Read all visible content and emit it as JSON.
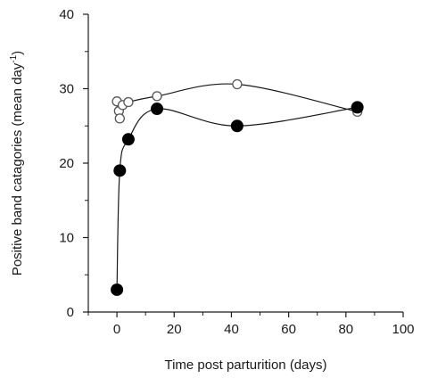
{
  "chart_data": {
    "type": "scatter",
    "xlabel": "Time post parturition (days)",
    "ylabel": "Positive band catagories (mean day",
    "ylabel_superscript": "-1",
    "ylabel_suffix": ")",
    "xlim": [
      -10,
      100
    ],
    "ylim": [
      0,
      40
    ],
    "xticks": [
      0,
      20,
      40,
      60,
      80,
      100
    ],
    "yticks": [
      0,
      10,
      20,
      30,
      40
    ],
    "grid": false,
    "series": [
      {
        "marker": "open-circle",
        "points": [
          {
            "x": 0,
            "y": 28.3
          },
          {
            "x": 0.7,
            "y": 27.0
          },
          {
            "x": 1.0,
            "y": 26.0
          },
          {
            "x": 2,
            "y": 27.8
          },
          {
            "x": 4,
            "y": 28.2
          },
          {
            "x": 14,
            "y": 29.0
          },
          {
            "x": 42,
            "y": 30.6
          },
          {
            "x": 84,
            "y": 26.9
          }
        ]
      },
      {
        "marker": "filled-circle",
        "points": [
          {
            "x": 0,
            "y": 3.0
          },
          {
            "x": 1,
            "y": 19.0
          },
          {
            "x": 4,
            "y": 23.2
          },
          {
            "x": 14,
            "y": 27.3
          },
          {
            "x": 42,
            "y": 25.0
          },
          {
            "x": 84,
            "y": 27.5
          }
        ]
      }
    ]
  }
}
